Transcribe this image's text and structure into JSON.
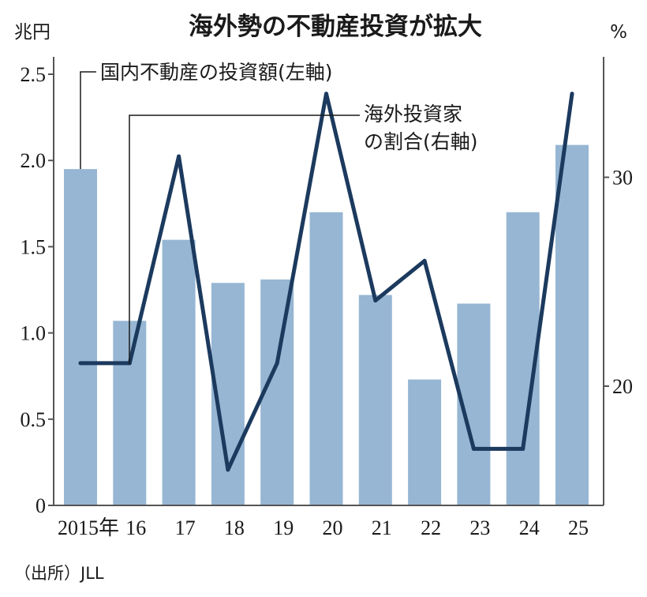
{
  "chart_data": {
    "type": "bar+line",
    "title": "海外勢の不動産投資が拡大",
    "left_unit": "兆円",
    "right_unit": "%",
    "categories": [
      "2015年",
      "16",
      "17",
      "18",
      "19",
      "20",
      "21",
      "22",
      "23",
      "24",
      "25"
    ],
    "series": [
      {
        "name": "国内不動産の投資額(左軸)",
        "type": "bar",
        "axis": "left",
        "color": "#96b6d3",
        "values": [
          1.95,
          1.07,
          1.54,
          1.29,
          1.31,
          1.7,
          1.22,
          0.73,
          1.17,
          1.7,
          2.09
        ]
      },
      {
        "name": "海外投資家の割合(右軸)",
        "type": "line",
        "axis": "right",
        "color": "#1c3a5e",
        "values": [
          21.1,
          21.1,
          31.0,
          16.0,
          21.1,
          34.0,
          24.1,
          26.0,
          17.0,
          17.0,
          34.0
        ]
      }
    ],
    "left_axis": {
      "range": [
        0,
        2.5
      ],
      "ticks": [
        "0",
        "0.5",
        "1.0",
        "1.5",
        "2.0",
        "2.5"
      ],
      "tick_values": [
        0,
        0.5,
        1.0,
        1.5,
        2.0,
        2.5
      ]
    },
    "right_axis": {
      "range": [
        14,
        34.8
      ],
      "ticks": [
        "20",
        "30"
      ],
      "tick_values": [
        20,
        30
      ]
    },
    "annotations": {
      "bar_label": "国内不動産の投資額(左軸)",
      "line_label_1": "海外投資家",
      "line_label_2": "の割合(右軸)"
    },
    "source": "（出所）JLL",
    "grid": false
  }
}
